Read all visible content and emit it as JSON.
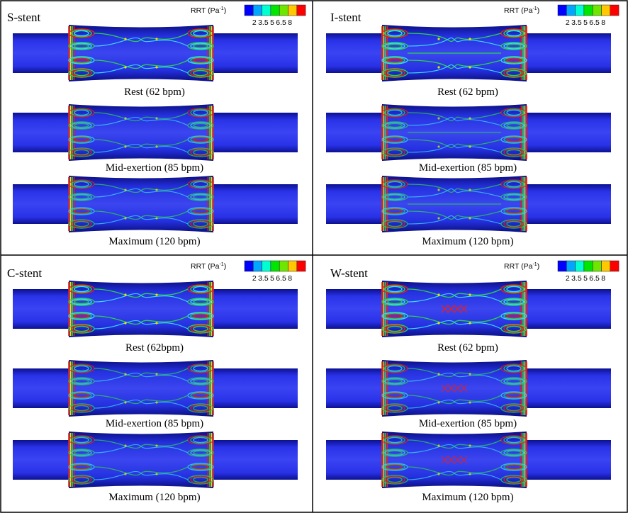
{
  "legend": {
    "title": "RRT (Pa",
    "title_sup": "-1",
    "title_close": ")",
    "ticks": [
      "2",
      "3.5",
      "5",
      "6.5",
      "8"
    ],
    "colors": [
      "#0000ff",
      "#00a6ff",
      "#00ffd2",
      "#00e600",
      "#6fe600",
      "#ffc800",
      "#ff0000"
    ]
  },
  "colors": {
    "vessel_blue": "#2a32e8",
    "vessel_dark": "#1018a8",
    "strut_red": "#ff1a00",
    "strut_green": "#28d24a",
    "strut_cyan": "#3ad8ff",
    "strut_yellow": "#e6e600"
  },
  "panels": [
    {
      "title": "S-stent",
      "pattern": "s",
      "conditions": [
        "Rest (62 bpm)",
        "Mid-exertion (85 bpm)",
        "Maximum (120 bpm)"
      ]
    },
    {
      "title": "I-stent",
      "pattern": "i",
      "conditions": [
        "Rest (62 bpm)",
        "Mid-exertion (85 bpm)",
        "Maximum (120 bpm)"
      ]
    },
    {
      "title": "C-stent",
      "pattern": "c",
      "conditions": [
        "Rest (62bpm)",
        "Mid-exertion (85 bpm)",
        "Maximum (120 bpm)"
      ]
    },
    {
      "title": "W-stent",
      "pattern": "w",
      "conditions": [
        "Rest (62 bpm)",
        "Mid-exertion (85 bpm)",
        "Maximum (120 bpm)"
      ]
    }
  ]
}
